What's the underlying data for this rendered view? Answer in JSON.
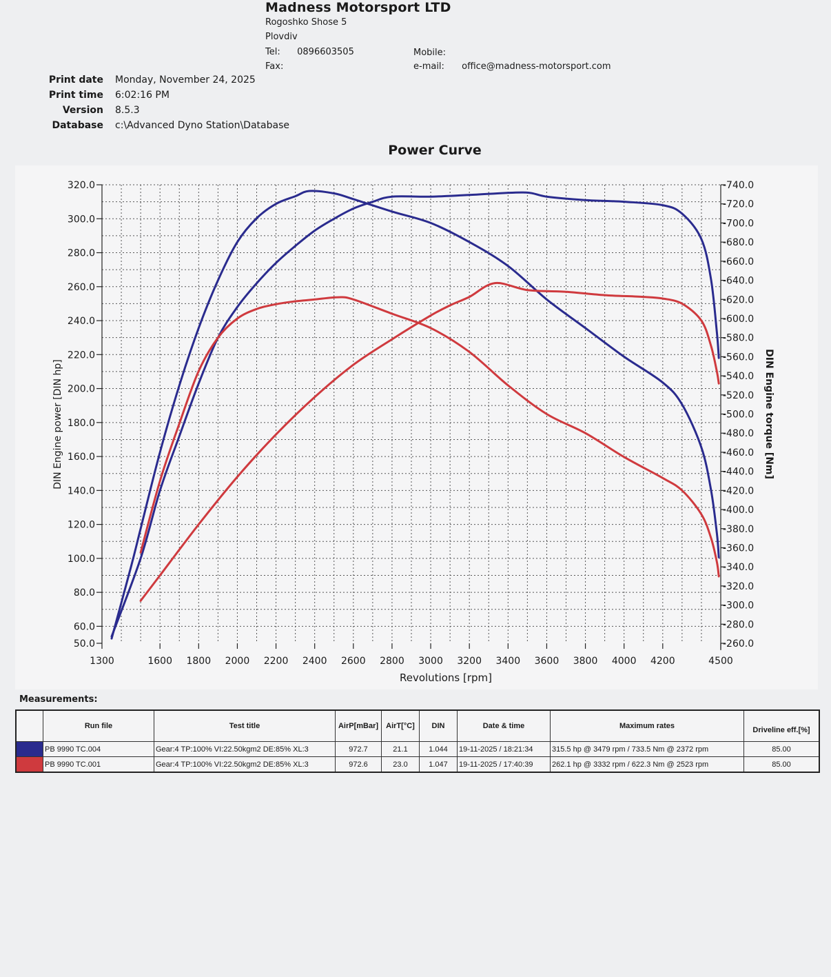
{
  "company": {
    "name": "Madness Motorsport LTD",
    "address1": "Rogoshko Shose 5",
    "address2": "Plovdiv",
    "tel_label": "Tel:",
    "tel": "0896603505",
    "fax_label": "Fax:",
    "mobile_label": "Mobile:",
    "email_label": "e-mail:",
    "email": "office@madness-motorsport.com"
  },
  "meta": {
    "print_date_label": "Print date",
    "print_date": "Monday, November 24, 2025",
    "print_time_label": "Print time",
    "print_time": "6:02:16 PM",
    "version_label": "Version",
    "version": "8.5.3",
    "database_label": "Database",
    "database": "c:\\Advanced Dyno Station\\Database"
  },
  "colors": {
    "blue": "#2a2b8e",
    "red": "#cf3a3e"
  },
  "chart_data": {
    "type": "line",
    "title": "Power Curve",
    "xlabel": "Revolutions [rpm]",
    "ylabel": "DIN Engine power [DIN hp]",
    "y2label": "DIN Engine torque [Nm]",
    "xlim": [
      1300,
      4500
    ],
    "ylim": [
      50,
      320
    ],
    "y2lim": [
      260,
      740
    ],
    "x_ticks": [
      1300,
      1600,
      1800,
      2000,
      2200,
      2400,
      2600,
      2800,
      3000,
      3200,
      3400,
      3600,
      3800,
      4000,
      4200,
      4500
    ],
    "y_ticks": [
      "320.0",
      "300.0",
      "280.0",
      "260.0",
      "240.0",
      "220.0",
      "200.0",
      "180.0",
      "160.0",
      "140.0",
      "120.0",
      "100.0",
      "80.0",
      "60.0",
      "50.0"
    ],
    "y2_ticks": [
      "-740.0",
      "-720.0",
      "-700.0",
      "-680.0",
      "-660.0",
      "-640.0",
      "-620.0",
      "-600.0",
      "-580.0",
      "-560.0",
      "-540.0",
      "-520.0",
      "-500.0",
      "-480.0",
      "-460.0",
      "-440.0",
      "-420.0",
      "-400.0",
      "-380.0",
      "-360.0",
      "-340.0",
      "-320.0",
      "-300.0",
      "-280.0",
      "-260.0"
    ],
    "grid": true,
    "series": [
      {
        "name": "PB 9990 TC.004 power",
        "color": "#2a2b8e",
        "axis": "left",
        "points": [
          [
            1350,
            54
          ],
          [
            1500,
            100
          ],
          [
            1600,
            140
          ],
          [
            1700,
            172
          ],
          [
            1800,
            203
          ],
          [
            1900,
            230
          ],
          [
            2000,
            248
          ],
          [
            2100,
            262
          ],
          [
            2200,
            274
          ],
          [
            2300,
            284
          ],
          [
            2400,
            293
          ],
          [
            2500,
            300
          ],
          [
            2600,
            306
          ],
          [
            2700,
            310
          ],
          [
            2800,
            313
          ],
          [
            3000,
            313
          ],
          [
            3200,
            314
          ],
          [
            3479,
            315.5
          ],
          [
            3600,
            313
          ],
          [
            3800,
            311
          ],
          [
            4000,
            310
          ],
          [
            4200,
            308
          ],
          [
            4300,
            303
          ],
          [
            4400,
            288
          ],
          [
            4450,
            264
          ],
          [
            4480,
            233
          ],
          [
            4490,
            218
          ]
        ]
      },
      {
        "name": "PB 9990 TC.004 torque",
        "color": "#2a2b8e",
        "axis": "right",
        "points": [
          [
            1350,
            265
          ],
          [
            1450,
            340
          ],
          [
            1500,
            380
          ],
          [
            1600,
            460
          ],
          [
            1700,
            530
          ],
          [
            1800,
            590
          ],
          [
            1900,
            640
          ],
          [
            2000,
            680
          ],
          [
            2100,
            705
          ],
          [
            2200,
            720
          ],
          [
            2300,
            728
          ],
          [
            2372,
            733.5
          ],
          [
            2500,
            731
          ],
          [
            2600,
            725
          ],
          [
            2800,
            712
          ],
          [
            3000,
            700
          ],
          [
            3200,
            680
          ],
          [
            3400,
            655
          ],
          [
            3600,
            620
          ],
          [
            3800,
            590
          ],
          [
            4000,
            560
          ],
          [
            4200,
            533
          ],
          [
            4300,
            510
          ],
          [
            4400,
            465
          ],
          [
            4450,
            420
          ],
          [
            4480,
            375
          ],
          [
            4490,
            350
          ]
        ]
      },
      {
        "name": "PB 9990 TC.001 power",
        "color": "#cf3a3e",
        "axis": "left",
        "points": [
          [
            1500,
            75
          ],
          [
            1600,
            90
          ],
          [
            1800,
            120
          ],
          [
            2000,
            148
          ],
          [
            2200,
            173
          ],
          [
            2400,
            195
          ],
          [
            2600,
            214
          ],
          [
            2800,
            229
          ],
          [
            3000,
            243
          ],
          [
            3100,
            249
          ],
          [
            3200,
            254
          ],
          [
            3332,
            262.1
          ],
          [
            3500,
            258
          ],
          [
            3700,
            257
          ],
          [
            3900,
            255
          ],
          [
            4100,
            254
          ],
          [
            4200,
            253
          ],
          [
            4300,
            250
          ],
          [
            4400,
            240
          ],
          [
            4450,
            225
          ],
          [
            4480,
            210
          ],
          [
            4490,
            203
          ]
        ]
      },
      {
        "name": "PB 9990 TC.001 torque",
        "color": "#cf3a3e",
        "axis": "right",
        "points": [
          [
            1500,
            355
          ],
          [
            1600,
            430
          ],
          [
            1700,
            490
          ],
          [
            1800,
            545
          ],
          [
            1900,
            580
          ],
          [
            2000,
            600
          ],
          [
            2100,
            610
          ],
          [
            2200,
            615
          ],
          [
            2300,
            618
          ],
          [
            2400,
            620
          ],
          [
            2523,
            622.3
          ],
          [
            2600,
            620
          ],
          [
            2800,
            605
          ],
          [
            3000,
            590
          ],
          [
            3200,
            565
          ],
          [
            3400,
            530
          ],
          [
            3600,
            500
          ],
          [
            3800,
            480
          ],
          [
            4000,
            455
          ],
          [
            4200,
            433
          ],
          [
            4300,
            420
          ],
          [
            4400,
            395
          ],
          [
            4450,
            370
          ],
          [
            4480,
            345
          ],
          [
            4490,
            330
          ]
        ]
      }
    ]
  },
  "measurements": {
    "label": "Measurements:",
    "headers": [
      "",
      "Run file",
      "Test title",
      "AirP[mBar]",
      "AirT[°C]",
      "DIN",
      "Date & time",
      "Maximum rates",
      "Driveline eff.[%]"
    ],
    "rows": [
      {
        "color": "blue",
        "run_file": "PB 9990 TC.004",
        "test_title": "Gear:4 TP:100% VI:22.50kgm2 DE:85% XL:3",
        "airp": "972.7",
        "airt": "21.1",
        "din": "1.044",
        "datetime": "19-11-2025 / 18:21:34",
        "max_rates": "315.5 hp @ 3479 rpm / 733.5 Nm @ 2372 rpm",
        "driveline": "85.00"
      },
      {
        "color": "red",
        "run_file": "PB 9990 TC.001",
        "test_title": "Gear:4 TP:100% VI:22.50kgm2 DE:85% XL:3",
        "airp": "972.6",
        "airt": "23.0",
        "din": "1.047",
        "datetime": "19-11-2025 / 17:40:39",
        "max_rates": "262.1 hp @ 3332 rpm / 622.3 Nm @ 2523 rpm",
        "driveline": "85.00"
      }
    ]
  }
}
